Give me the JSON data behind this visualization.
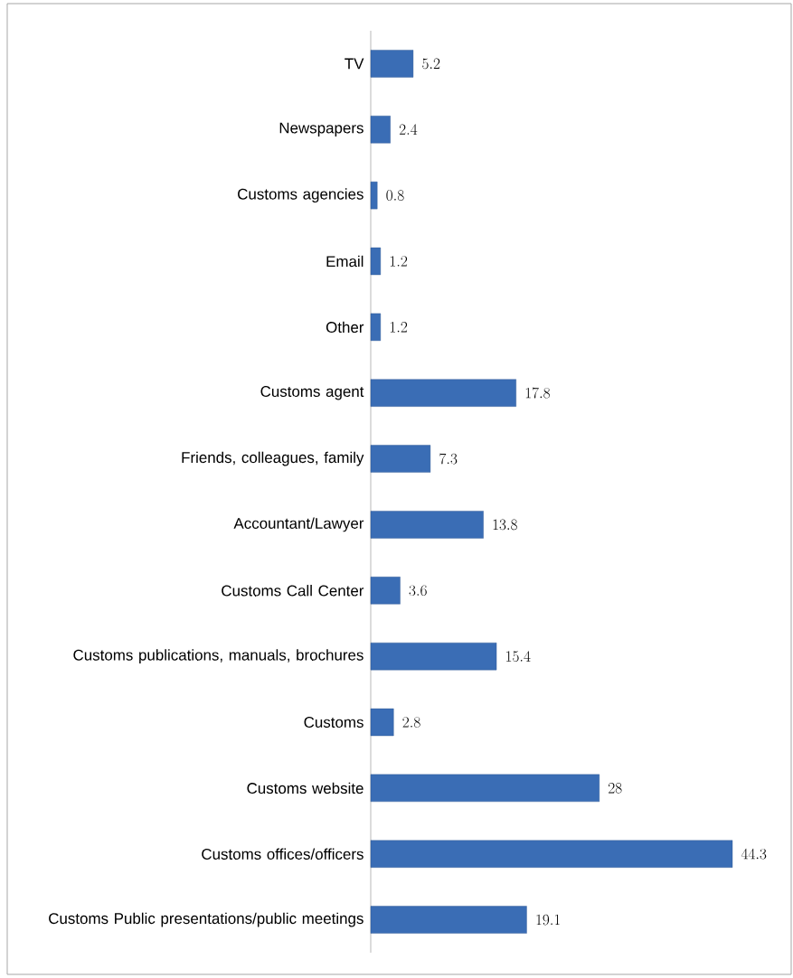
{
  "chart_data": {
    "type": "bar",
    "orientation": "horizontal",
    "data_labels": true,
    "color": "#3a6db5",
    "categories": [
      "TV",
      "Newspapers",
      "Customs agencies",
      "Email",
      "Other",
      "Customs agent",
      "Friends, colleagues, family",
      "Accountant/Lawyer",
      "Customs Call Center",
      "Customs publications, manuals, brochures",
      "Customs",
      "Customs website",
      "Customs offices/officers",
      "Customs Public presentations/public meetings"
    ],
    "values": [
      5.2,
      2.4,
      0.8,
      1.2,
      1.2,
      17.8,
      7.3,
      13.8,
      3.6,
      15.4,
      2.8,
      28,
      44.3,
      19.1
    ]
  }
}
